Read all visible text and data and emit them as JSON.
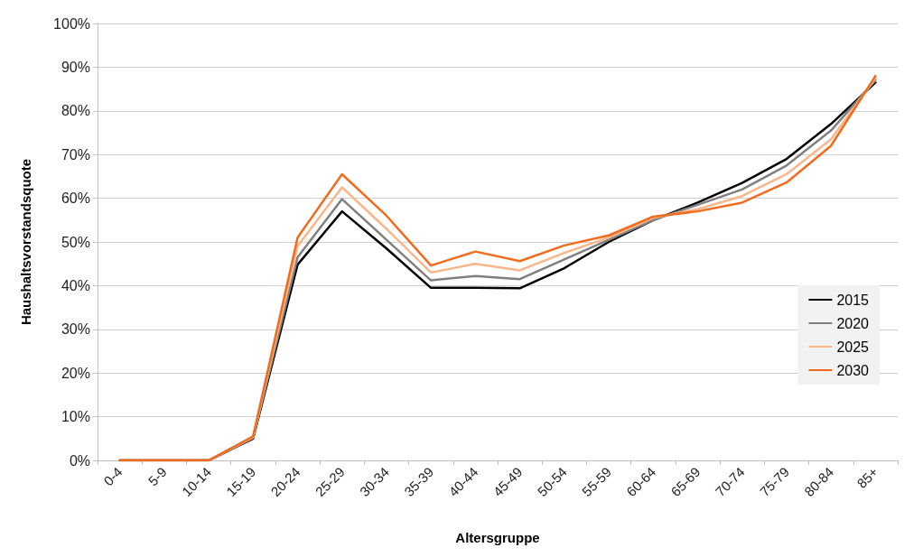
{
  "chart_data": {
    "type": "line",
    "xlabel": "Altersgruppe",
    "ylabel": "Haushaltsvorstandsquote",
    "categories": [
      "0-4",
      "5-9",
      "10-14",
      "15-19",
      "20-24",
      "25-29",
      "30-34",
      "35-39",
      "40-44",
      "45-49",
      "50-54",
      "55-59",
      "60-64",
      "65-69",
      "70-74",
      "75-79",
      "80-84",
      "85+"
    ],
    "series": [
      {
        "name": "2015",
        "color": "#000000",
        "values": [
          0,
          0,
          0,
          5,
          44.8,
          57,
          48.5,
          39.5,
          39.5,
          39.4,
          44,
          50,
          55,
          59,
          63.5,
          69,
          77,
          86.5
        ]
      },
      {
        "name": "2020",
        "color": "#808080",
        "values": [
          0,
          0,
          0,
          5.2,
          46.5,
          59.8,
          50.5,
          41.2,
          42.2,
          41.5,
          46,
          50.5,
          55,
          58.5,
          62,
          67.5,
          75.5,
          87
        ]
      },
      {
        "name": "2025",
        "color": "#f8b68a",
        "values": [
          0,
          0,
          0,
          5.3,
          49,
          62.5,
          53,
          43,
          45,
          43.5,
          47.5,
          51,
          55.5,
          57.5,
          60.5,
          65.5,
          73.5,
          87.5
        ]
      },
      {
        "name": "2030",
        "color": "#f26b1d",
        "values": [
          0,
          0,
          0,
          5.5,
          51,
          65.5,
          56,
          44.6,
          47.8,
          45.6,
          49.2,
          51.5,
          55.8,
          57,
          59,
          63.6,
          72,
          88
        ]
      }
    ],
    "ylim": [
      0,
      100
    ],
    "yticks": [
      {
        "value": 0,
        "label": "0%"
      },
      {
        "value": 10,
        "label": "10%"
      },
      {
        "value": 20,
        "label": "20%"
      },
      {
        "value": 30,
        "label": "30%"
      },
      {
        "value": 40,
        "label": "40%"
      },
      {
        "value": 50,
        "label": "50%"
      },
      {
        "value": 60,
        "label": "60%"
      },
      {
        "value": 70,
        "label": "70%"
      },
      {
        "value": 80,
        "label": "80%"
      },
      {
        "value": 90,
        "label": "90%"
      },
      {
        "value": 100,
        "label": "100%"
      }
    ],
    "grid": "y",
    "legend": "right",
    "marker": "none",
    "line_style": "solid"
  }
}
